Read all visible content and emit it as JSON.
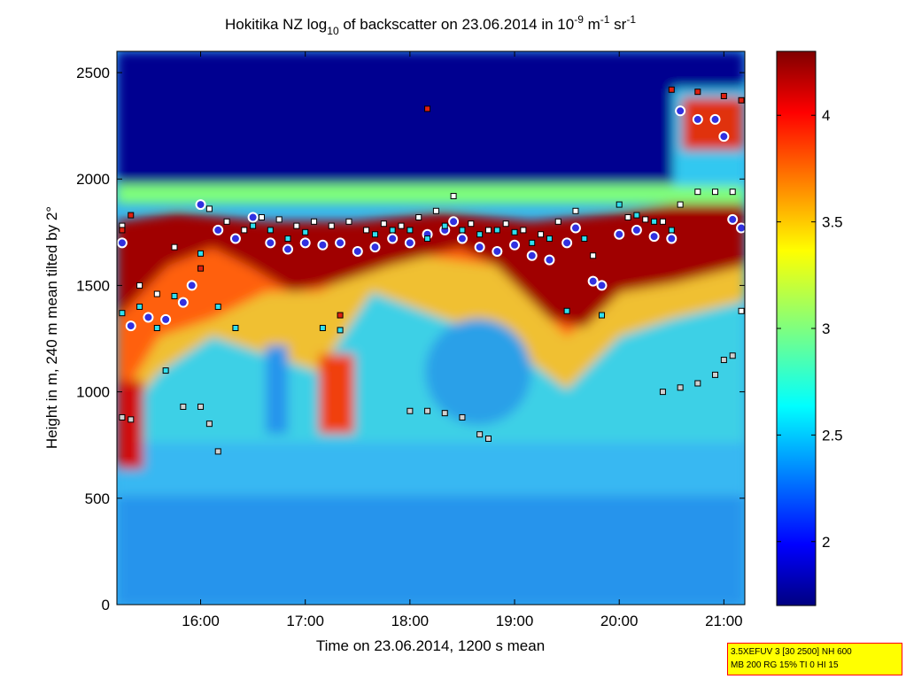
{
  "chart_data": {
    "type": "heatmap",
    "title": {
      "prefix": "Hokitika NZ log",
      "subscript": "10",
      "middle": " of backscatter on 23.06.2014 in 10",
      "exp1": "-9",
      "unit1": " m",
      "exp2": "-1",
      "unit2": " sr",
      "exp3": "-1"
    },
    "xlabel": "Time on 23.06.2014, 1200 s mean",
    "ylabel": "Height in m, 240 m mean tilted by 2°",
    "xlim": [
      "15:12",
      "21:12"
    ],
    "ylim": [
      0,
      2600
    ],
    "xticks": [
      "16:00",
      "17:00",
      "18:00",
      "19:00",
      "20:00",
      "21:00"
    ],
    "yticks": [
      "0",
      "500",
      "1000",
      "1500",
      "2000",
      "2500"
    ],
    "colorbar": {
      "limits": [
        1.7,
        4.3
      ],
      "ticks": [
        "2",
        "2.5",
        "3",
        "3.5",
        "4"
      ],
      "colormap": "jet"
    },
    "series": [
      {
        "marker": "white-circle-blue-fill",
        "points": [
          [
            "15:15",
            1700
          ],
          [
            "15:20",
            1310
          ],
          [
            "15:30",
            1350
          ],
          [
            "15:40",
            1340
          ],
          [
            "15:50",
            1420
          ],
          [
            "15:55",
            1500
          ],
          [
            "16:00",
            1880
          ],
          [
            "16:10",
            1760
          ],
          [
            "16:20",
            1720
          ],
          [
            "16:30",
            1820
          ],
          [
            "16:40",
            1700
          ],
          [
            "16:50",
            1670
          ],
          [
            "17:00",
            1700
          ],
          [
            "17:10",
            1690
          ],
          [
            "17:20",
            1700
          ],
          [
            "17:30",
            1660
          ],
          [
            "17:40",
            1680
          ],
          [
            "17:50",
            1720
          ],
          [
            "18:00",
            1700
          ],
          [
            "18:10",
            1740
          ],
          [
            "18:20",
            1760
          ],
          [
            "18:25",
            1800
          ],
          [
            "18:30",
            1720
          ],
          [
            "18:40",
            1680
          ],
          [
            "18:50",
            1660
          ],
          [
            "19:00",
            1690
          ],
          [
            "19:10",
            1640
          ],
          [
            "19:20",
            1620
          ],
          [
            "19:30",
            1700
          ],
          [
            "19:35",
            1770
          ],
          [
            "19:45",
            1520
          ],
          [
            "19:50",
            1500
          ],
          [
            "20:00",
            1740
          ],
          [
            "20:10",
            1760
          ],
          [
            "20:20",
            1730
          ],
          [
            "20:30",
            1720
          ],
          [
            "20:35",
            2320
          ],
          [
            "20:45",
            2280
          ],
          [
            "20:55",
            2280
          ],
          [
            "21:00",
            2200
          ],
          [
            "21:05",
            1810
          ],
          [
            "21:10",
            1770
          ]
        ]
      },
      {
        "marker": "white-square",
        "points": [
          [
            "15:15",
            1780
          ],
          [
            "15:25",
            1500
          ],
          [
            "15:35",
            1460
          ],
          [
            "15:45",
            1680
          ],
          [
            "16:05",
            1860
          ],
          [
            "16:15",
            1800
          ],
          [
            "16:25",
            1760
          ],
          [
            "16:35",
            1820
          ],
          [
            "16:45",
            1810
          ],
          [
            "16:55",
            1780
          ],
          [
            "17:05",
            1800
          ],
          [
            "17:15",
            1780
          ],
          [
            "17:25",
            1800
          ],
          [
            "17:35",
            1760
          ],
          [
            "17:45",
            1790
          ],
          [
            "17:55",
            1780
          ],
          [
            "18:05",
            1820
          ],
          [
            "18:15",
            1850
          ],
          [
            "18:25",
            1920
          ],
          [
            "18:35",
            1790
          ],
          [
            "18:45",
            1760
          ],
          [
            "18:55",
            1790
          ],
          [
            "19:05",
            1760
          ],
          [
            "19:15",
            1740
          ],
          [
            "19:25",
            1800
          ],
          [
            "19:35",
            1850
          ],
          [
            "19:45",
            1640
          ],
          [
            "20:05",
            1820
          ],
          [
            "20:15",
            1810
          ],
          [
            "20:25",
            1800
          ],
          [
            "20:35",
            1880
          ],
          [
            "20:45",
            1940
          ],
          [
            "20:55",
            1940
          ],
          [
            "21:05",
            1940
          ],
          [
            "21:10",
            1380
          ]
        ]
      },
      {
        "marker": "cyan-square",
        "points": [
          [
            "15:15",
            1370
          ],
          [
            "15:25",
            1400
          ],
          [
            "15:35",
            1300
          ],
          [
            "15:40",
            1100
          ],
          [
            "15:45",
            1450
          ],
          [
            "16:00",
            1650
          ],
          [
            "16:10",
            1400
          ],
          [
            "16:20",
            1300
          ],
          [
            "16:30",
            1780
          ],
          [
            "16:40",
            1760
          ],
          [
            "16:50",
            1720
          ],
          [
            "17:00",
            1750
          ],
          [
            "17:10",
            1300
          ],
          [
            "17:20",
            1290
          ],
          [
            "17:40",
            1740
          ],
          [
            "17:50",
            1760
          ],
          [
            "18:00",
            1760
          ],
          [
            "18:10",
            1720
          ],
          [
            "18:20",
            1780
          ],
          [
            "18:30",
            1760
          ],
          [
            "18:40",
            1740
          ],
          [
            "18:50",
            1760
          ],
          [
            "19:00",
            1750
          ],
          [
            "19:10",
            1700
          ],
          [
            "19:20",
            1720
          ],
          [
            "19:30",
            1380
          ],
          [
            "19:40",
            1720
          ],
          [
            "19:50",
            1360
          ],
          [
            "20:00",
            1880
          ],
          [
            "20:10",
            1830
          ],
          [
            "20:20",
            1800
          ],
          [
            "20:30",
            1760
          ]
        ]
      },
      {
        "marker": "black-square",
        "points": [
          [
            "15:15",
            880
          ],
          [
            "15:20",
            870
          ],
          [
            "15:50",
            930
          ],
          [
            "16:00",
            930
          ],
          [
            "16:05",
            850
          ],
          [
            "16:10",
            720
          ],
          [
            "18:00",
            910
          ],
          [
            "18:10",
            910
          ],
          [
            "18:20",
            900
          ],
          [
            "18:30",
            880
          ],
          [
            "18:40",
            800
          ],
          [
            "18:45",
            780
          ],
          [
            "20:25",
            1000
          ],
          [
            "20:35",
            1020
          ],
          [
            "20:45",
            1040
          ],
          [
            "20:55",
            1080
          ],
          [
            "21:00",
            1150
          ],
          [
            "21:05",
            1170
          ]
        ]
      },
      {
        "marker": "red-square",
        "points": [
          [
            "15:15",
            1760
          ],
          [
            "15:20",
            1830
          ],
          [
            "16:00",
            1580
          ],
          [
            "17:20",
            1360
          ],
          [
            "18:10",
            2330
          ],
          [
            "20:30",
            2420
          ],
          [
            "20:45",
            2410
          ],
          [
            "21:00",
            2390
          ],
          [
            "21:10",
            2370
          ]
        ]
      }
    ],
    "info_box": [
      "3.5XEFUV 3 [30 2500] NH 600",
      "MB 200 RG 15% TI 0 HI 15"
    ]
  }
}
